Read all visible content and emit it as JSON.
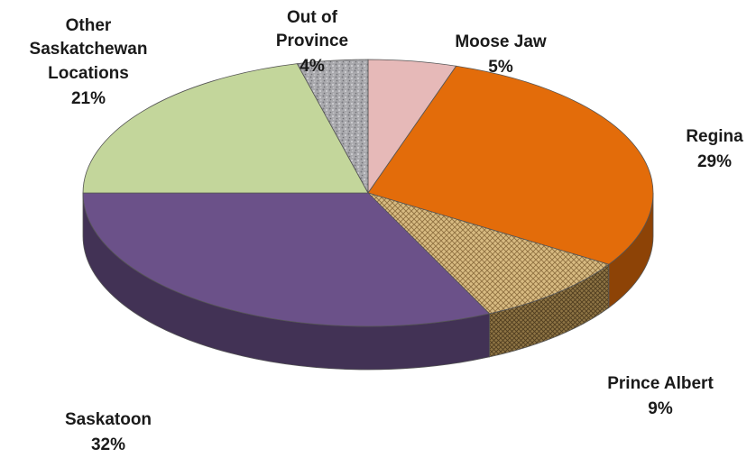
{
  "chart_data": {
    "type": "pie",
    "three_d": true,
    "start_slice": "Moose Jaw",
    "direction": "clockwise",
    "slices": [
      {
        "label": "Moose Jaw",
        "value": 5,
        "pct_label": "5%",
        "color": "#e6b9b8",
        "pattern": "none"
      },
      {
        "label": "Regina",
        "value": 29,
        "pct_label": "29%",
        "color": "#e36c0a",
        "pattern": "none"
      },
      {
        "label": "Prince Albert",
        "value": 9,
        "pct_label": "9%",
        "color": "#c9a86a",
        "pattern": "woven"
      },
      {
        "label": "Saskatoon",
        "value": 32,
        "pct_label": "32%",
        "color": "#6b5189",
        "pattern": "none"
      },
      {
        "label": "Other Saskatchewan Locations",
        "value": 21,
        "pct_label": "21%",
        "color": "#c3d69b",
        "pattern": "none"
      },
      {
        "label": "Out of Province",
        "value": 4,
        "pct_label": "4%",
        "color": "#a6a6a6",
        "pattern": "granite"
      }
    ]
  }
}
